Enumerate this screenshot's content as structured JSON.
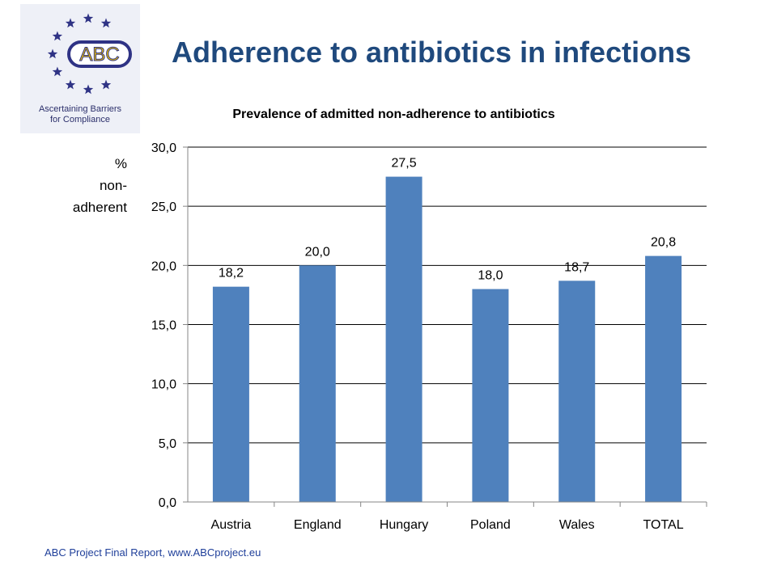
{
  "logo": {
    "badge_text": "ABC",
    "caption_line1": "Ascertaining Barriers",
    "caption_line2": "for Compliance",
    "star_color": "#2f3385",
    "badge_color": "#2f3385",
    "badge_text_color": "#f2c500"
  },
  "slide_title": "Adherence to antibiotics in infections",
  "footer": "ABC Project Final Report, www.ABCproject.eu",
  "chart_data": {
    "type": "bar",
    "title": "Prevalence of admitted non-adherence to antibiotics",
    "ylabel_lines": [
      "%",
      "non-",
      "adherent"
    ],
    "xlabel": "",
    "categories": [
      "Austria",
      "England",
      "Hungary",
      "Poland",
      "Wales",
      "TOTAL"
    ],
    "values": [
      18.2,
      20.0,
      27.5,
      18.0,
      18.7,
      20.8
    ],
    "value_labels": [
      "18,2",
      "20,0",
      "27,5",
      "18,0",
      "18,7",
      "20,8"
    ],
    "ylim": [
      0,
      30
    ],
    "yticks": [
      0,
      5,
      10,
      15,
      20,
      25,
      30
    ],
    "ytick_labels": [
      "0,0",
      "5,0",
      "10,0",
      "15,0",
      "20,0",
      "25,0",
      "30,0"
    ],
    "grid": true,
    "legend": "none",
    "bar_color": "#4f81bd"
  }
}
